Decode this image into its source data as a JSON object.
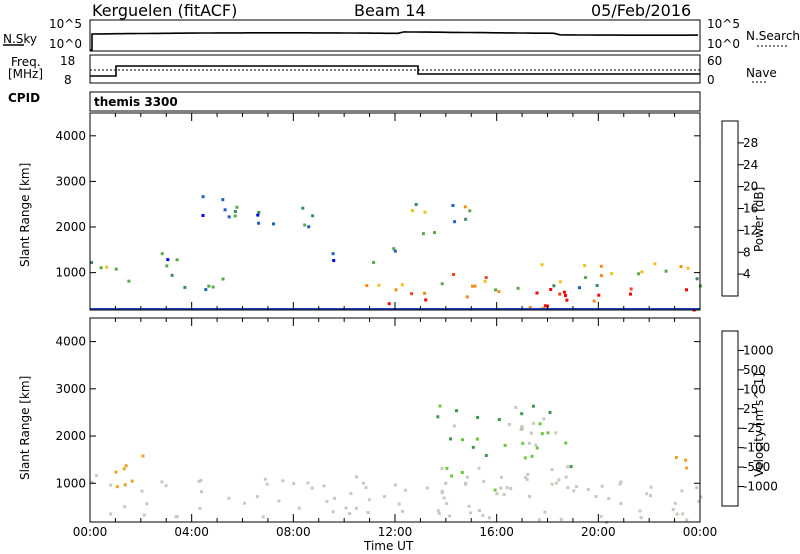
{
  "header": {
    "station": "Kerguelen (fitACF)",
    "beam": "Beam 14",
    "date": "05/Feb/2016"
  },
  "panels": {
    "sky": {
      "left_label": "N.Sky",
      "right_label": "N.Search",
      "ticks": [
        "10^5",
        "10^0"
      ],
      "right_ticks": [
        "10^5",
        "10^0"
      ]
    },
    "freq": {
      "label_line1": "Freq.",
      "label_line2": "[MHz]",
      "ticks": [
        "18",
        "8"
      ],
      "right_label": "Nave",
      "right_ticks": [
        "60",
        "0"
      ]
    },
    "cpid": {
      "label": "CPID",
      "value": "themis 3300"
    }
  },
  "colors": {
    "power": [
      "#0000ff",
      "#1f5fbf",
      "#3c8b5a",
      "#5aa84a",
      "#f0c020",
      "#f08c1c",
      "#e8461e",
      "#ff0000"
    ],
    "velocity": [
      "#ff0000",
      "#f05a14",
      "#f0a028",
      "#c8c8be",
      "#c8c8be",
      "#6cc83c",
      "#3c9650",
      "#2c6ca8",
      "#1c3cbc"
    ],
    "ground": "#c8c8be"
  },
  "chart_data": [
    {
      "type": "heatmap",
      "name": "power",
      "x_unit": "Time UT",
      "y_unit": "Slant Range [km]",
      "ylim": [
        180,
        4500
      ],
      "xlim": [
        "00:00",
        "24:00"
      ],
      "colorbar_label": "Power [dB]",
      "colorbar_ticks": [
        "28",
        "24",
        "20",
        "16",
        "12",
        "8",
        "4"
      ],
      "colorbar_range": [
        0,
        32
      ],
      "yticks": [
        "4000",
        "3000",
        "2000",
        "1000"
      ],
      "regions": [
        {
          "t": [
            0.0,
            1.8
          ],
          "r": [
            700,
            1300
          ],
          "level": 14
        },
        {
          "t": [
            1.8,
            3.5
          ],
          "r": [
            900,
            1500
          ],
          "level": 10
        },
        {
          "t": [
            3.5,
            6.5
          ],
          "r": [
            600,
            1000
          ],
          "level": 9
        },
        {
          "t": [
            4.0,
            9.0
          ],
          "r": [
            2000,
            2700
          ],
          "level": 8
        },
        {
          "t": [
            9.5,
            12.2
          ],
          "r": [
            1200,
            1600
          ],
          "level": 9
        },
        {
          "t": [
            10.0,
            13.5
          ],
          "r": [
            350,
            800
          ],
          "level": 25
        },
        {
          "t": [
            12.5,
            15.0
          ],
          "r": [
            1700,
            2600
          ],
          "level": 14
        },
        {
          "t": [
            13.0,
            17.0
          ],
          "r": [
            400,
            1000
          ],
          "level": 20
        },
        {
          "t": [
            17.0,
            24.0
          ],
          "r": [
            200,
            700
          ],
          "level": 29
        },
        {
          "t": [
            17.0,
            24.0
          ],
          "r": [
            700,
            1250
          ],
          "level": 14
        }
      ]
    },
    {
      "type": "heatmap",
      "name": "velocity",
      "x_unit": "Time UT",
      "y_unit": "Slant Range [km]",
      "ylim": [
        180,
        4500
      ],
      "xlim": [
        "00:00",
        "24:00"
      ],
      "colorbar_label": "Velocity [m s^-1]",
      "colorbar_ticks": [
        "1000",
        "500",
        "100",
        "25",
        "-25",
        "-100",
        "-500",
        "-1000"
      ],
      "yticks": [
        "4000",
        "3000",
        "2000",
        "1000"
      ],
      "xticks": [
        "00:00",
        "04:00",
        "08:00",
        "12:00",
        "16:00",
        "20:00",
        "00:00"
      ],
      "regions": [
        {
          "t": [
            0.0,
            17.0
          ],
          "r": [
            300,
            1200
          ],
          "vel": 0
        },
        {
          "t": [
            0.8,
            2.2
          ],
          "r": [
            900,
            2000
          ],
          "vel": -250
        },
        {
          "t": [
            13.5,
            19.0
          ],
          "r": [
            800,
            2700
          ],
          "vel": 60
        },
        {
          "t": [
            17.0,
            24.0
          ],
          "r": [
            200,
            1200
          ],
          "vel": 0
        },
        {
          "t": [
            23.0,
            24.0
          ],
          "r": [
            1300,
            2000
          ],
          "vel": -250
        }
      ]
    }
  ],
  "axis": {
    "xlabel": "Time UT",
    "ylabel": "Slant Range [km]"
  }
}
